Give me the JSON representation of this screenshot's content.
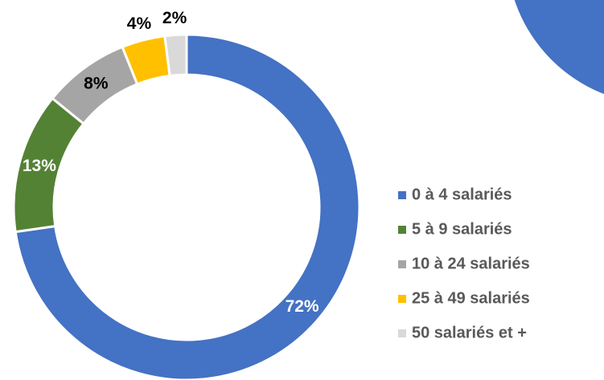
{
  "chart_data": {
    "type": "donut",
    "categories": [
      "0 à 4 salariés",
      "5 à 9 salariés",
      "10 à 24 salariés",
      "25 à 49 salariés",
      "50 salariés et +"
    ],
    "values": [
      72,
      13,
      8,
      4,
      2
    ],
    "value_labels": [
      "72%",
      "13%",
      "8%",
      "4%",
      "2%"
    ],
    "colors": [
      "#4472c4",
      "#548235",
      "#a5a5a5",
      "#ffc000",
      "#d9d9d9"
    ],
    "legend": "right"
  }
}
